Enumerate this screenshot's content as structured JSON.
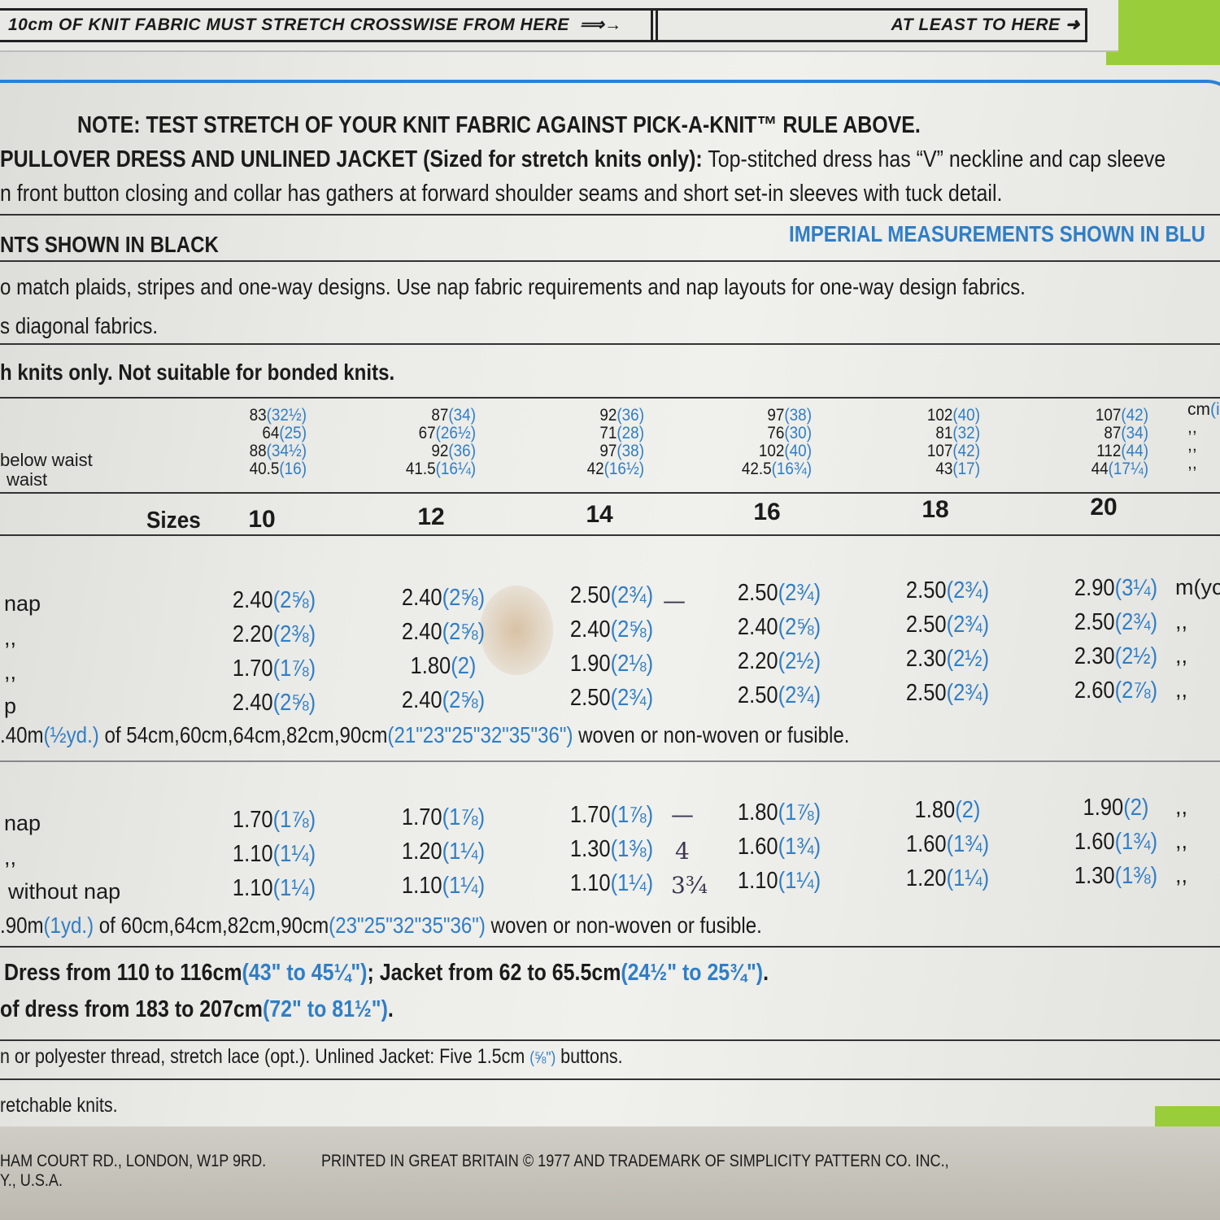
{
  "ruler": {
    "from_text": "10cm OF KNIT FABRIC MUST STRETCH CROSSWISE FROM HERE",
    "to_text": "AT LEAST TO HERE"
  },
  "note": "NOTE: TEST STRETCH OF YOUR KNIT FABRIC AGAINST PICK-A-KNIT™ RULE ABOVE.",
  "description": {
    "bold": "PULLOVER DRESS AND UNLINED JACKET (Sized for stretch knits only):",
    "rest": " Top-stitched dress has “V” neckline and cap sleeve",
    "line2": "n front button closing and collar has gathers at forward shoulder seams and short set-in sleeves with tuck detail."
  },
  "metric_heading": "NTS SHOWN IN BLACK",
  "imperial_heading": "IMPERIAL MEASUREMENTS SHOWN IN BLU",
  "fabric_note1": "o match plaids, stripes and one-way designs. Use nap fabric requirements and nap layouts for one-way design fabrics.",
  "fabric_note2": "s diagonal fabrics.",
  "knits_note": "h knits only. Not suitable for bonded knits.",
  "measurements": {
    "labels": [
      "below waist",
      "waist"
    ],
    "unit_lines": [
      {
        "black": "cm",
        "blue": "(i"
      },
      {
        "black": ",,",
        "blue": ""
      },
      {
        "black": ",,",
        "blue": ""
      },
      {
        "black": ",,",
        "blue": ""
      }
    ],
    "columns": [
      [
        [
          "83",
          "(32½)"
        ],
        [
          "64",
          "(25)"
        ],
        [
          "88",
          "(34½)"
        ],
        [
          "40.5",
          "(16)"
        ]
      ],
      [
        [
          "87",
          "(34)"
        ],
        [
          "67",
          "(26½)"
        ],
        [
          "92",
          "(36)"
        ],
        [
          "41.5",
          "(16¼)"
        ]
      ],
      [
        [
          "92",
          "(36)"
        ],
        [
          "71",
          "(28)"
        ],
        [
          "97",
          "(38)"
        ],
        [
          "42",
          "(16½)"
        ]
      ],
      [
        [
          "97",
          "(38)"
        ],
        [
          "76",
          "(30)"
        ],
        [
          "102",
          "(40)"
        ],
        [
          "42.5",
          "(16¾)"
        ]
      ],
      [
        [
          "102",
          "(40)"
        ],
        [
          "81",
          "(32)"
        ],
        [
          "107",
          "(42)"
        ],
        [
          "43",
          "(17)"
        ]
      ],
      [
        [
          "107",
          "(42)"
        ],
        [
          "87",
          "(34)"
        ],
        [
          "112",
          "(44)"
        ],
        [
          "44",
          "(17¼)"
        ]
      ]
    ]
  },
  "sizes": {
    "label": "Sizes",
    "values": [
      "10",
      "12",
      "14",
      "16",
      "18",
      "20"
    ]
  },
  "table1": {
    "rows": [
      {
        "label": "nap",
        "unit": "m(yc",
        "cells": [
          [
            "2.40",
            "(2⅝)"
          ],
          [
            "2.40",
            "(2⅝)"
          ],
          [
            "2.50",
            "(2¾)"
          ],
          [
            "2.50",
            "(2¾)"
          ],
          [
            "2.50",
            "(2¾)"
          ],
          [
            "2.90",
            "(3¼)"
          ]
        ]
      },
      {
        "label": ",,",
        "unit": ",,",
        "cells": [
          [
            "2.20",
            "(2⅜)"
          ],
          [
            "2.40",
            "(2⅝)"
          ],
          [
            "2.40",
            "(2⅝)"
          ],
          [
            "2.40",
            "(2⅝)"
          ],
          [
            "2.50",
            "(2¾)"
          ],
          [
            "2.50",
            "(2¾)"
          ]
        ]
      },
      {
        "label": ",,",
        "unit": ",,",
        "cells": [
          [
            "1.70",
            "(1⅞)"
          ],
          [
            "1.80",
            "(2)"
          ],
          [
            "1.90",
            "(2⅛)"
          ],
          [
            "2.20",
            "(2½)"
          ],
          [
            "2.30",
            "(2½)"
          ],
          [
            "2.30",
            "(2½)"
          ]
        ]
      },
      {
        "label": "p",
        "unit": ",,",
        "cells": [
          [
            "2.40",
            "(2⅝)"
          ],
          [
            "2.40",
            "(2⅝)"
          ],
          [
            "2.50",
            "(2¾)"
          ],
          [
            "2.50",
            "(2¾)"
          ],
          [
            "2.50",
            "(2¾)"
          ],
          [
            "2.60",
            "(2⅞)"
          ]
        ]
      }
    ],
    "interfacing": {
      "a": ".40m",
      "b": "(½yd.)",
      "c": " of 54cm,60cm,64cm,82cm,90cm",
      "d": "(21\"23\"25\"32\"35\"36\")",
      "e": " woven or non-woven or fusible."
    }
  },
  "table2": {
    "rows": [
      {
        "label": "nap",
        "unit": ",,",
        "cells": [
          [
            "1.70",
            "(1⅞)"
          ],
          [
            "1.70",
            "(1⅞)"
          ],
          [
            "1.70",
            "(1⅞)"
          ],
          [
            "1.80",
            "(1⅞)"
          ],
          [
            "1.80",
            "(2)"
          ],
          [
            "1.90",
            "(2)"
          ]
        ]
      },
      {
        "label": ",,",
        "unit": ",,",
        "cells": [
          [
            "1.10",
            "(1¼)"
          ],
          [
            "1.20",
            "(1¼)"
          ],
          [
            "1.30",
            "(1⅜)"
          ],
          [
            "1.60",
            "(1¾)"
          ],
          [
            "1.60",
            "(1¾)"
          ],
          [
            "1.60",
            "(1¾)"
          ]
        ]
      },
      {
        "label": "without nap",
        "unit": ",,",
        "cells": [
          [
            "1.10",
            "(1¼)"
          ],
          [
            "1.10",
            "(1¼)"
          ],
          [
            "1.10",
            "(1¼)"
          ],
          [
            "1.10",
            "(1¼)"
          ],
          [
            "1.20",
            "(1¼)"
          ],
          [
            "1.30",
            "(1⅜)"
          ]
        ]
      }
    ],
    "interfacing": {
      "a": ".90m",
      "b": "(1yd.)",
      "c": " of 60cm,64cm,82cm,90cm",
      "d": "(23\"25\"32\"35\"36\")",
      "e": " woven or non-woven or fusible."
    }
  },
  "handwriting": [
    "—",
    "—",
    "—",
    "4",
    "3¾"
  ],
  "lengths": {
    "a": "Dress from 110 to 116cm",
    "b": "(43\" to 45¼\")",
    "c": "; Jacket from 62 to 65.5cm",
    "d": "(24½\" to 25¾\")",
    "e": ".",
    "f": "of dress from 183 to 207cm",
    "g": "(72\" to 81½\")",
    "h": "."
  },
  "notions": {
    "a": "n or polyester thread, stretch lace (opt.). Unlined Jacket: Five 1.5cm ",
    "b": "(⅝\")",
    "c": " buttons."
  },
  "stretch_note": "retchable knits.",
  "footer": {
    "line1a": "HAM COURT RD., LONDON, W1P 9RD.",
    "line1b": "PRINTED IN GREAT BRITAIN  © 1977 AND TRADEMARK OF SIMPLICITY PATTERN CO. INC.,",
    "line2": "Y., U.S.A."
  },
  "colors": {
    "black_text": "#1b1b1b",
    "imperial_blue": "#2f7ec7",
    "border_blue": "#2a82d4",
    "envelope_green": "#9acd3a"
  }
}
